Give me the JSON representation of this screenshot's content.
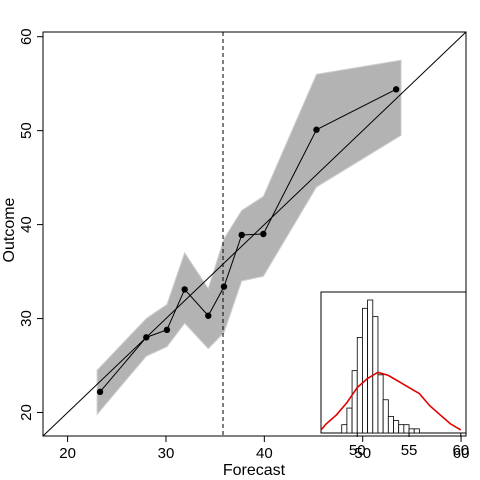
{
  "chart_data": {
    "type": "line",
    "xlabel": "Forecast",
    "ylabel": "Outcome",
    "xlim": [
      17.5,
      60.5
    ],
    "ylim": [
      17.5,
      60.5
    ],
    "x_ticks": [
      20,
      30,
      40,
      50,
      60
    ],
    "y_ticks": [
      20,
      30,
      40,
      50,
      60
    ],
    "x_tick_labels": [
      "20",
      "30",
      "40",
      "50",
      "60"
    ],
    "y_tick_labels": [
      "20",
      "30",
      "40",
      "50",
      "60"
    ],
    "reference_line": "y = x",
    "vertical_dashed_line_x": 35.8,
    "colors": {
      "points": "#000000",
      "band": "#b3b3b3",
      "density": "#e00000"
    },
    "points": [
      {
        "x": 23.3,
        "y": 22.2
      },
      {
        "x": 28.0,
        "y": 28.0
      },
      {
        "x": 30.1,
        "y": 28.8
      },
      {
        "x": 31.9,
        "y": 33.1
      },
      {
        "x": 34.3,
        "y": 30.3
      },
      {
        "x": 35.9,
        "y": 33.4
      },
      {
        "x": 37.7,
        "y": 38.9
      },
      {
        "x": 39.9,
        "y": 39.0
      },
      {
        "x": 45.3,
        "y": 50.1
      },
      {
        "x": 53.4,
        "y": 54.4
      }
    ],
    "band": {
      "x": [
        23.0,
        28.0,
        30.1,
        31.9,
        34.3,
        35.9,
        37.7,
        39.9,
        45.3,
        53.9
      ],
      "upper": [
        24.5,
        30.0,
        31.5,
        37.0,
        33.2,
        38.5,
        41.5,
        43.0,
        56.0,
        57.5
      ],
      "lower": [
        19.8,
        26.0,
        27.0,
        29.5,
        26.8,
        28.5,
        34.0,
        34.5,
        44.0,
        49.5
      ]
    },
    "inset": {
      "type": "histogram",
      "xlim": [
        46.5,
        60.5
      ],
      "x_ticks": [
        50,
        55,
        60
      ],
      "x_tick_labels": [
        "50",
        "55",
        "60"
      ],
      "bin_start": 48.0,
      "bin_width": 0.5,
      "counts": [
        0,
        2,
        6,
        15,
        23,
        30,
        32,
        28,
        14,
        8,
        4,
        3,
        2,
        2,
        1,
        1
      ],
      "density_x": [
        46.0,
        47.0,
        48.0,
        49.0,
        50.0,
        51.0,
        52.0,
        53.0,
        54.0,
        55.0,
        56.0,
        57.0,
        58.0,
        59.0,
        60.0
      ],
      "density_y": [
        1,
        3,
        6,
        10,
        15,
        18,
        20,
        19,
        17,
        15,
        13,
        9,
        6,
        3,
        1
      ]
    }
  }
}
